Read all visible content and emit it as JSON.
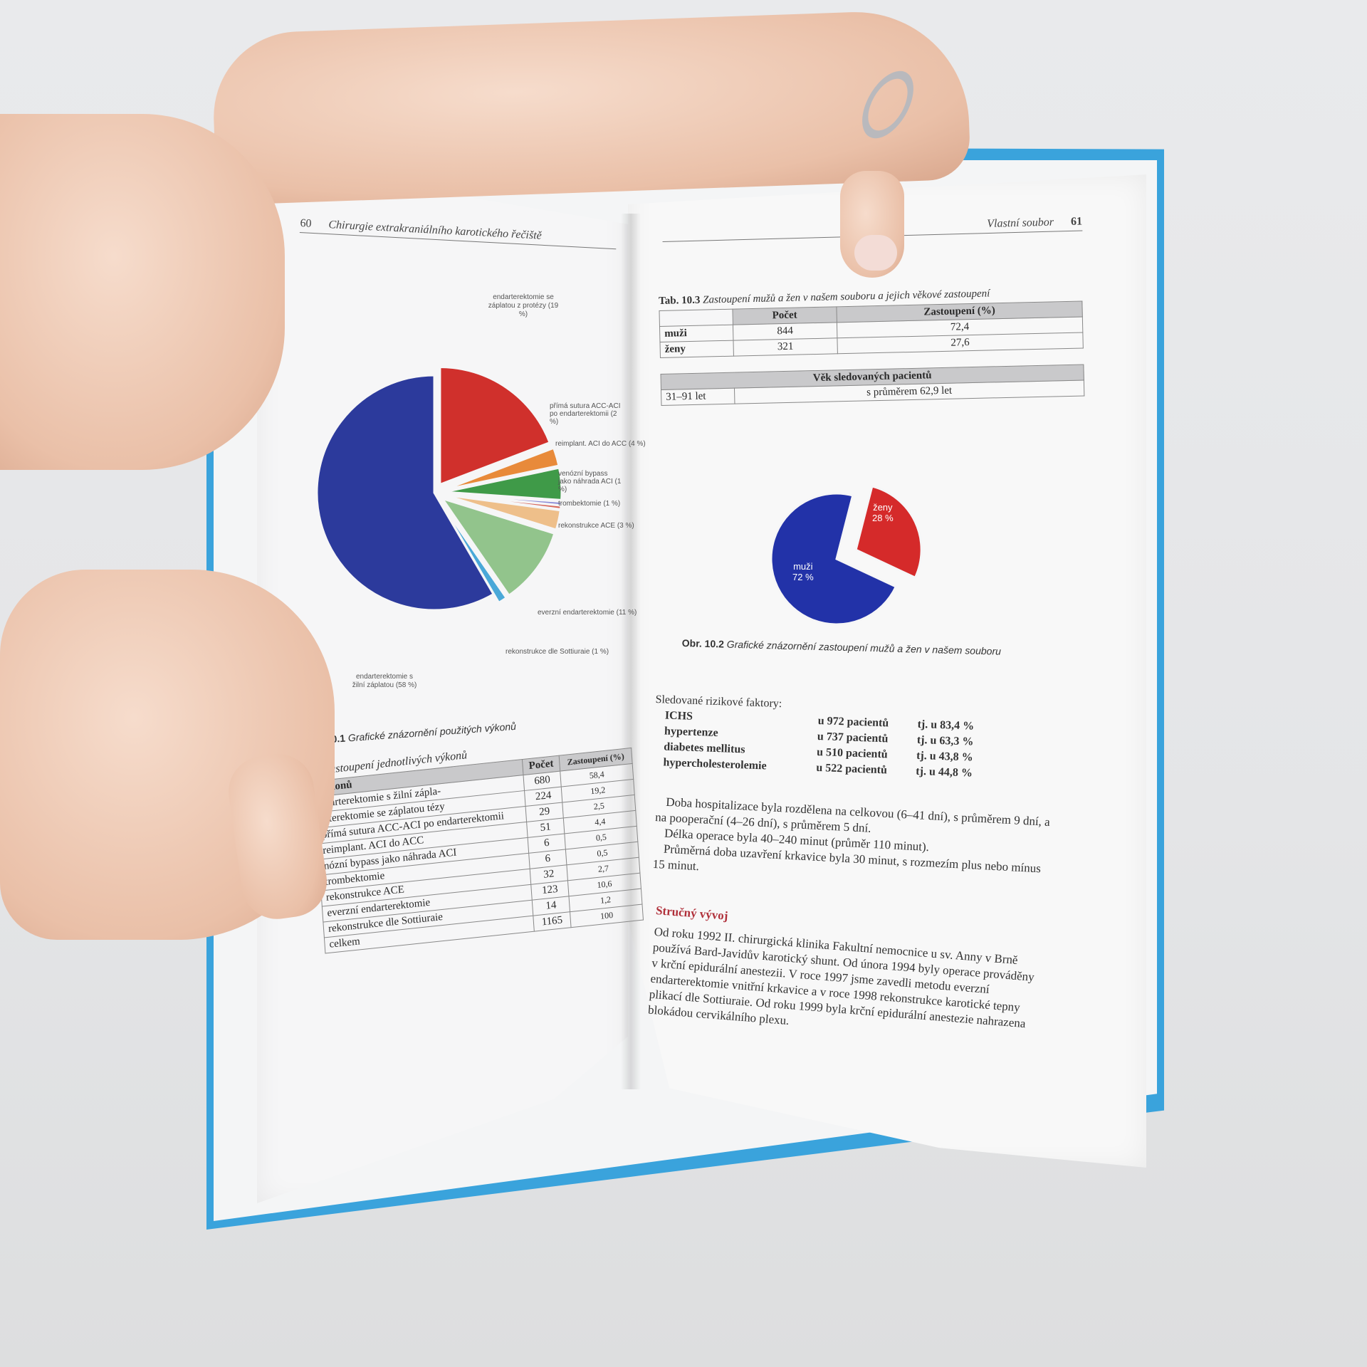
{
  "left_page": {
    "page_number": "60",
    "running_head": "Chirurgie extrakraniálního karotického řečiště",
    "figure_caption_num": "0.1",
    "figure_caption": "Grafické znázornění použitých výkonů",
    "table_caption_num": ".2",
    "table_caption": "Zastoupení jednotlivých výkonů",
    "table": {
      "headers": [
        "výkonů",
        "Počet",
        "Zastoupení (%)"
      ],
      "rows": [
        [
          "ndarterektomie s žilní zápla-",
          "680",
          "58,4"
        ],
        [
          "arterektomie se záplatou tézy",
          "224",
          "19,2"
        ],
        [
          "přímá sutura ACC-ACI po endarterektomii",
          "29",
          "2,5"
        ],
        [
          "reimplant. ACI do ACC",
          "51",
          "4,4"
        ],
        [
          "nózní bypass jako náhrada ACI",
          "6",
          "0,5"
        ],
        [
          "trombektomie",
          "6",
          "0,5"
        ],
        [
          "rekonstrukce ACE",
          "32",
          "2,7"
        ],
        [
          "everzní endarterektomie",
          "123",
          "10,6"
        ],
        [
          "rekonstrukce dle Sottiuraie",
          "14",
          "1,2"
        ],
        [
          "celkem",
          "1165",
          "100"
        ]
      ]
    }
  },
  "right_page": {
    "page_number": "61",
    "running_head": "Vlastní soubor",
    "table_caption_num": "Tab. 10.3",
    "table_caption": "Zastoupení mužů a žen v našem souboru a jejich věkové zastoupení",
    "table": {
      "headers": [
        "",
        "Počet",
        "Zastoupení (%)"
      ],
      "rows": [
        [
          "muži",
          "844",
          "72,4"
        ],
        [
          "ženy",
          "321",
          "27,6"
        ]
      ],
      "age_header": "Věk sledovaných pacientů",
      "age_row": [
        "31–91 let",
        "s průměrem 62,9 let"
      ]
    },
    "figure_caption_num": "Obr. 10.2",
    "figure_caption": "Grafické znázornění zastoupení mužů a žen v našem souboru",
    "risk_title": "Sledované rizikové faktory:",
    "risks": [
      {
        "name": "ICHS",
        "count": "u 972 pacientů",
        "pct": "tj. u 83,4 %"
      },
      {
        "name": "hypertenze",
        "count": "u 737 pacientů",
        "pct": "tj. u 63,3 %"
      },
      {
        "name": "diabetes mellitus",
        "count": "u 510 pacientů",
        "pct": "tj. u 43,8 %"
      },
      {
        "name": "hypercholesterolemie",
        "count": "u 522 pacientů",
        "pct": "tj. u 44,8 %"
      }
    ],
    "paragraphs": [
      "Doba hospitalizace byla rozdělena na celkovou (6–41 dní), s průměrem 9 dní, a na pooperační (4–26 dní), s průměrem 5 dní.",
      "Délka operace byla 40–240 minut (průměr 110 minut).",
      "Průměrná doba uzavření krkavice byla 30 minut, s rozmezím plus nebo mínus 15 minut."
    ],
    "section_title": "Stručný vývoj",
    "section_text": "Od roku 1992 II. chirurgická klinika Fakultní nemocnice u sv. Anny v Brně používá Bard-Javidův karotický shunt. Od února 1994 byly operace prováděny v krční epidurální anestezii. V roce 1997 jsme zavedli metodu everzní endarterektomie vnitřní krkavice a v roce 1998 rekonstrukce karotické tepny plikací dle Sottiuraie. Od roku 1999 byla krční epidurální anestezie nahrazena blokádou cervikálního plexu."
  },
  "colors": {
    "cover": "#3aa3dc",
    "section_title": "#b0303a"
  },
  "chart_data": [
    {
      "type": "pie",
      "labels": [
        "endarterektomie se záplatou z protézy (19 %)",
        "přímá sutura ACC-ACI po endarterektomii (2 %)",
        "reimplant. ACI do ACC (4 %)",
        "venózní bypass jako náhrada ACI (1 %)",
        "trombektomie (1 %)",
        "rekonstrukce ACE (3 %)",
        "everzní endarterektomie (11 %)",
        "rekonstrukce dle Sottiuraie (1 %)",
        "endarterektomie s žilní záplatou (58 %)"
      ],
      "values": [
        19.2,
        2.5,
        4.4,
        0.5,
        0.5,
        2.7,
        10.6,
        1.2,
        58.4
      ],
      "colors": [
        "#d0302c",
        "#e88a3a",
        "#3f9a48",
        "#8a8ad6",
        "#d8685a",
        "#eebf8a",
        "#92c48c",
        "#4aa8d8",
        "#2c3a9c"
      ]
    },
    {
      "type": "pie",
      "labels": [
        "ženy",
        "muži"
      ],
      "pct_labels": [
        "28 %",
        "72 %"
      ],
      "values": [
        28,
        72
      ],
      "colors": [
        "#d52a2a",
        "#2232a8"
      ]
    }
  ]
}
